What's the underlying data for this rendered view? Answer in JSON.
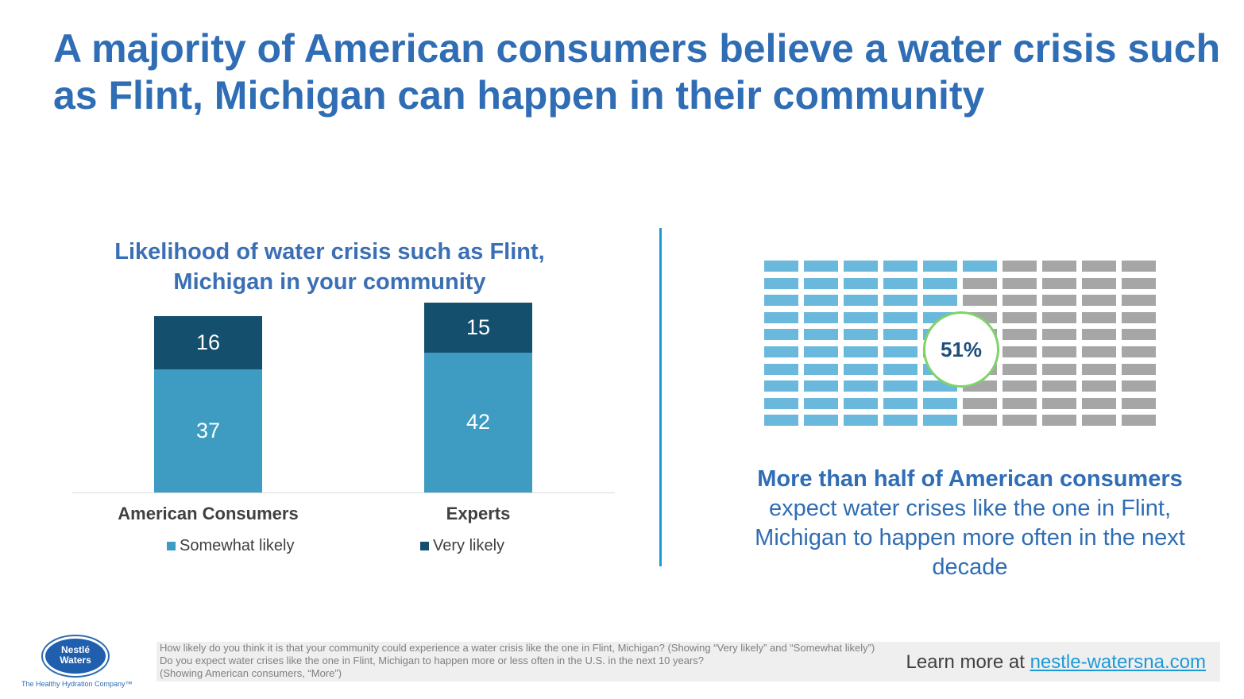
{
  "header": {
    "title": "A majority of American consumers believe a water crisis such as Flint, Michigan can happen in their community"
  },
  "chart_data": {
    "type": "bar",
    "stacked": true,
    "title": "Likelihood of water crisis such as Flint, Michigan in your community",
    "categories": [
      "American Consumers",
      "Experts"
    ],
    "series": [
      {
        "name": "Somewhat likely",
        "values": [
          37,
          42
        ],
        "color": "#3e9bc1"
      },
      {
        "name": "Very likely",
        "values": [
          16,
          15
        ],
        "color": "#154f6e"
      }
    ],
    "legend_position": "bottom"
  },
  "waffle": {
    "value": 51,
    "label": "51%",
    "total_cells": 100,
    "filled_color": "#6ab8dc",
    "empty_color": "#a6a6a6",
    "circle_color": "#7ed36a"
  },
  "side_text": {
    "bold": "More than half of American consumers",
    "rest": "expect water crises like the one in Flint, Michigan to happen more often in the next decade"
  },
  "footer": {
    "note_1": "How likely do you think it is that your community could experience a water crisis like the one in Flint, Michigan? (Showing “Very likely” and “Somewhat likely”)",
    "note_2": "Do you expect water crises like the one in Flint, Michigan to happen more or less often in the U.S. in the next 10 years?",
    "note_3": "(Showing American consumers, “More”)",
    "learn_prefix": "Learn more at ",
    "learn_link": "nestle-watersna.com"
  },
  "logo": {
    "line_1": "Nestlé",
    "line_2": "Waters",
    "tagline": "The Healthy Hydration Company™"
  }
}
